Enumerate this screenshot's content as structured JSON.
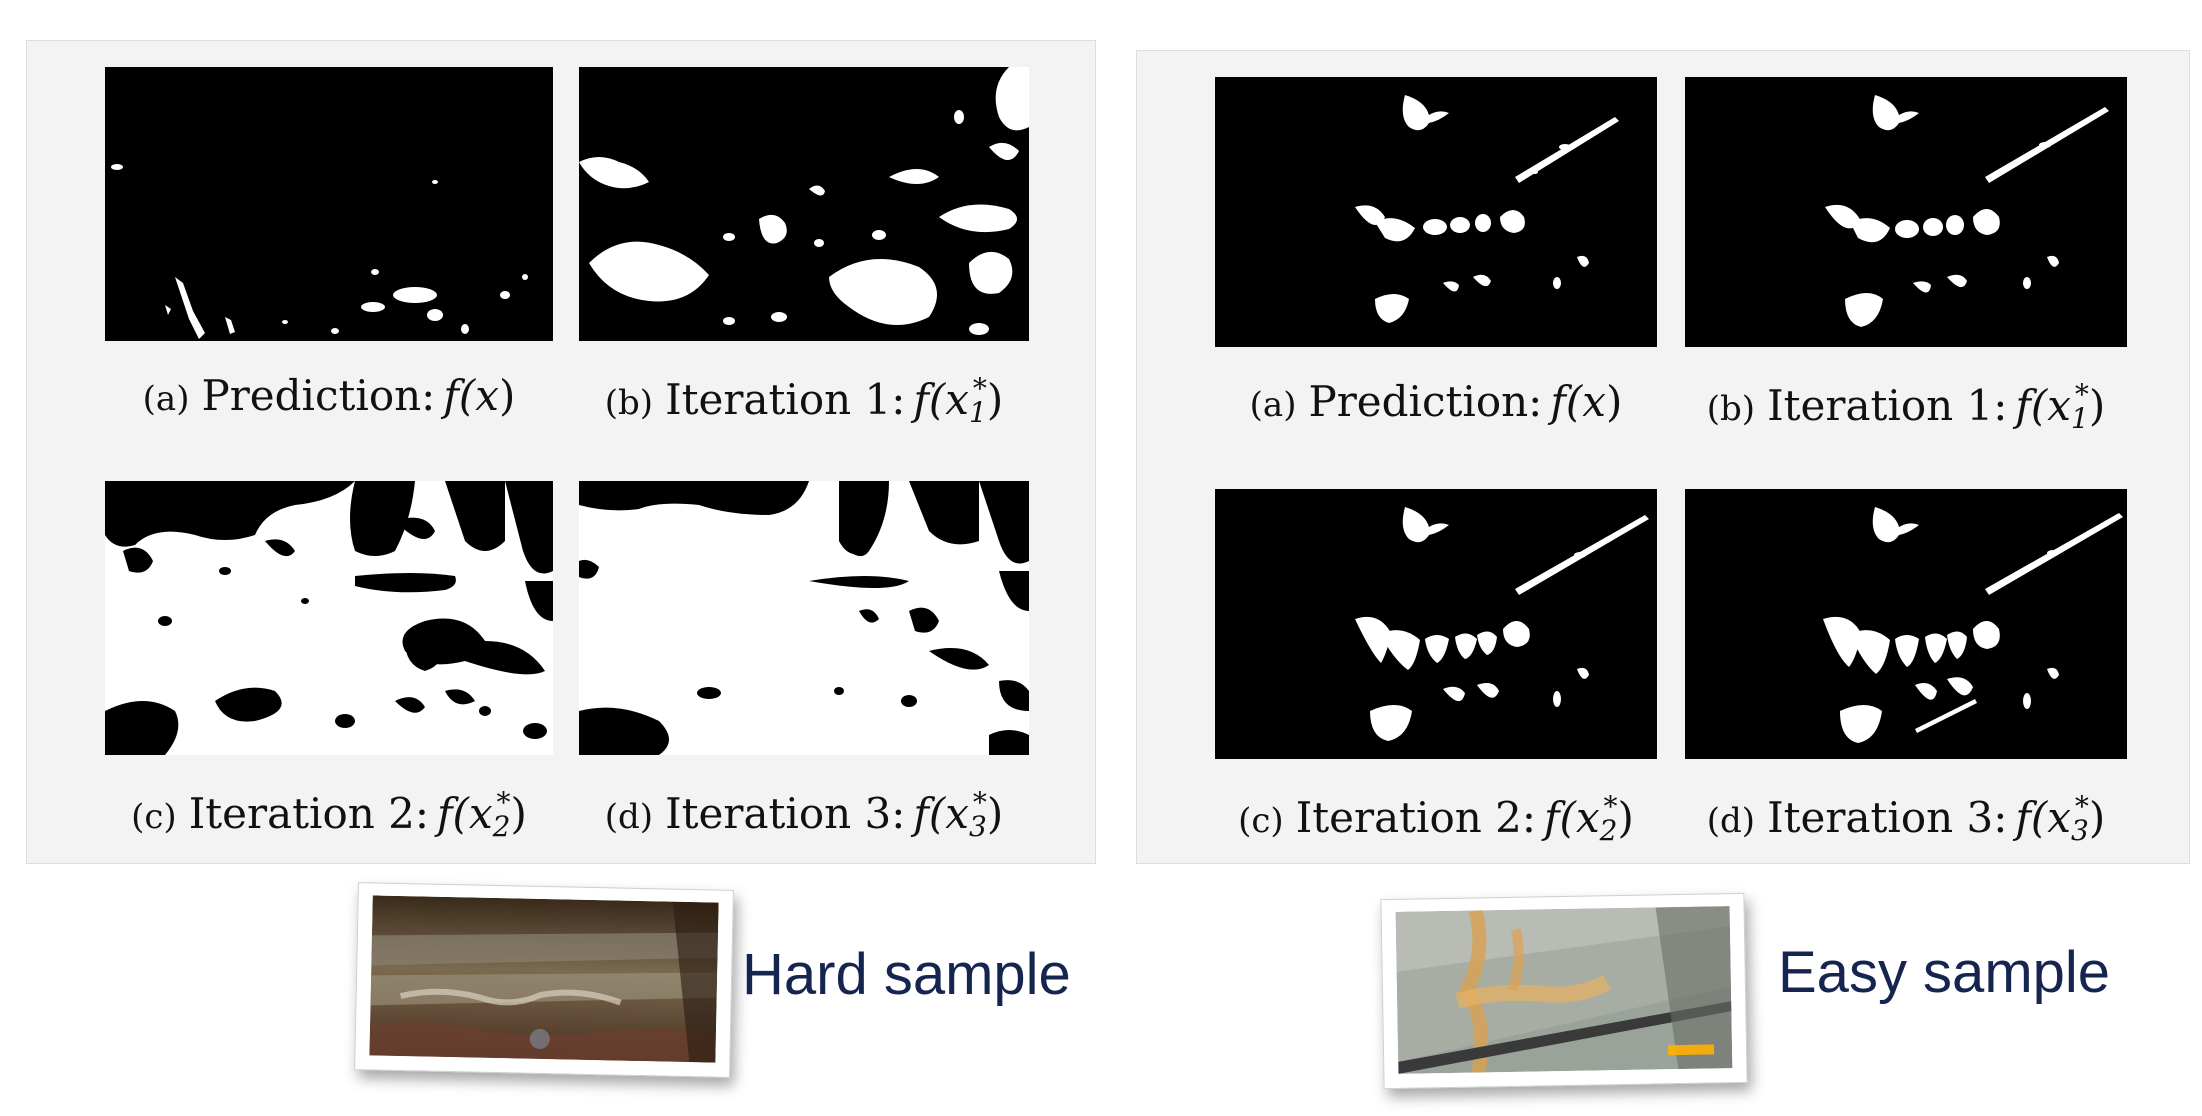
{
  "hard_panel": {
    "captions": [
      {
        "tag": "(a)",
        "text": "Prediction:",
        "math_prefix": "f(x",
        "sub": "",
        "sup": "",
        "math_suffix": ")"
      },
      {
        "tag": "(b)",
        "text": "Iteration 1:",
        "math_prefix": "f(x",
        "sub": "1",
        "sup": "*",
        "math_suffix": ")"
      },
      {
        "tag": "(c)",
        "text": "Iteration 2:",
        "math_prefix": "f(x",
        "sub": "2",
        "sup": "*",
        "math_suffix": ")"
      },
      {
        "tag": "(d)",
        "text": "Iteration 3:",
        "math_prefix": "f(x",
        "sub": "3",
        "sup": "*",
        "math_suffix": ")"
      }
    ],
    "label": "Hard sample"
  },
  "easy_panel": {
    "captions": [
      {
        "tag": "(a)",
        "text": "Prediction:",
        "math_prefix": "f(x",
        "sub": "",
        "sup": "",
        "math_suffix": ")"
      },
      {
        "tag": "(b)",
        "text": "Iteration 1:",
        "math_prefix": "f(x",
        "sub": "1",
        "sup": "*",
        "math_suffix": ")"
      },
      {
        "tag": "(c)",
        "text": "Iteration 2:",
        "math_prefix": "f(x",
        "sub": "2",
        "sup": "*",
        "math_suffix": ")"
      },
      {
        "tag": "(d)",
        "text": "Iteration 3:",
        "math_prefix": "f(x",
        "sub": "3",
        "sup": "*",
        "math_suffix": ")"
      }
    ],
    "label": "Easy sample"
  },
  "colors": {
    "panel_bg": "#f3f3f3",
    "mask_bg": "#000000",
    "mask_fg": "#ffffff",
    "label": "#16254f"
  }
}
